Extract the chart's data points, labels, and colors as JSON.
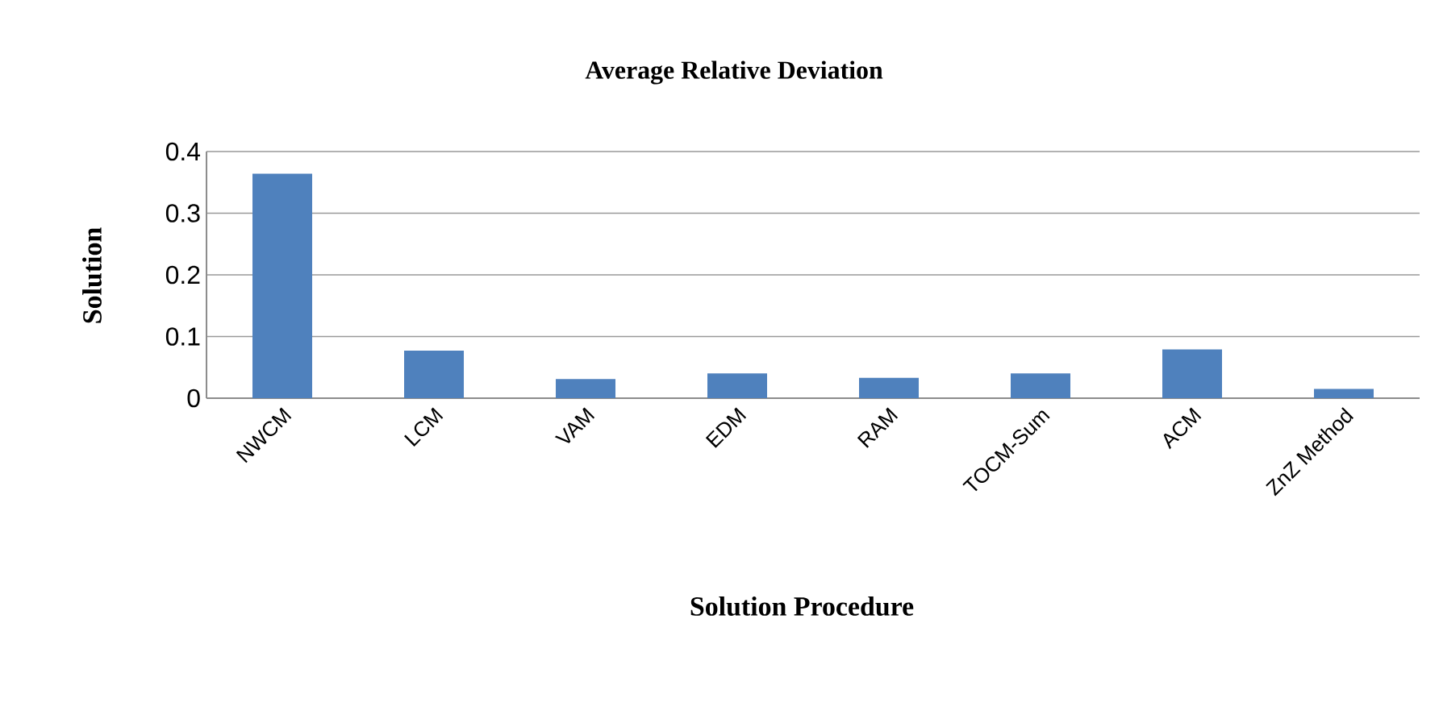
{
  "chart_data": {
    "type": "bar",
    "title": "Average Relative Deviation",
    "xlabel": "Solution Procedure",
    "ylabel": "Solution",
    "categories": [
      "NWCM",
      "LCM",
      "VAM",
      "EDM",
      "RAM",
      "TOCM-Sum",
      "ACM",
      "ZnZ Method"
    ],
    "values": [
      0.364,
      0.077,
      0.031,
      0.04,
      0.033,
      0.04,
      0.079,
      0.015
    ],
    "color": "#4f81bd",
    "ylim": [
      0,
      0.4
    ],
    "yticks": [
      0,
      0.1,
      0.2,
      0.3,
      0.4
    ],
    "grid": "y"
  }
}
